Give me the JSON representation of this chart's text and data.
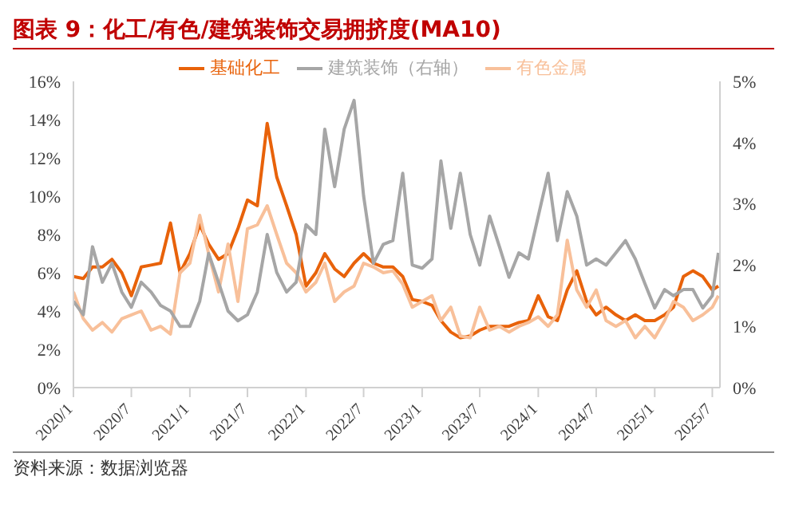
{
  "chart_data": {
    "type": "line",
    "title": "图表 9：化工/有色/建筑装饰交易拥挤度(MA10)",
    "x": [
      "2020-01",
      "2020-02",
      "2020-03",
      "2020-04",
      "2020-05",
      "2020-06",
      "2020-07",
      "2020-08",
      "2020-09",
      "2020-10",
      "2020-11",
      "2020-12",
      "2021-01",
      "2021-02",
      "2021-03",
      "2021-04",
      "2021-05",
      "2021-06",
      "2021-07",
      "2021-08",
      "2021-09",
      "2021-10",
      "2021-11",
      "2021-12",
      "2022-01",
      "2022-02",
      "2022-03",
      "2022-04",
      "2022-05",
      "2022-06",
      "2022-07",
      "2022-08",
      "2022-09",
      "2022-10",
      "2022-11",
      "2022-12",
      "2023-01",
      "2023-02",
      "2023-03",
      "2023-04",
      "2023-05",
      "2023-06",
      "2023-07",
      "2023-08",
      "2023-09",
      "2023-10",
      "2023-11",
      "2023-12",
      "2024-01",
      "2024-02",
      "2024-03",
      "2024-04",
      "2024-05",
      "2024-06",
      "2024-07",
      "2024-08",
      "2024-09",
      "2024-10",
      "2024-11",
      "2024-12",
      "2025-01",
      "2025-02",
      "2025-03",
      "2025-04",
      "2025-05",
      "2025-06",
      "2025-07",
      "2025-07-20"
    ],
    "series": [
      {
        "name": "基础化工",
        "color": "#e8620a",
        "values": [
          5.8,
          5.7,
          6.3,
          6.3,
          6.7,
          6.0,
          4.8,
          6.3,
          6.4,
          6.5,
          8.6,
          6.0,
          7.0,
          8.5,
          7.5,
          6.7,
          7.0,
          8.3,
          9.8,
          9.5,
          13.8,
          11.0,
          9.5,
          8.0,
          5.3,
          6.0,
          7.0,
          6.2,
          5.8,
          6.5,
          7.0,
          6.5,
          6.3,
          6.3,
          5.8,
          4.6,
          4.5,
          4.3,
          3.5,
          2.9,
          2.6,
          2.7,
          3.0,
          3.2,
          3.2,
          3.2,
          3.4,
          3.5,
          4.8,
          3.7,
          3.5,
          5.1,
          6.1,
          4.5,
          3.8,
          4.2,
          3.8,
          3.5,
          3.8,
          3.5,
          3.5,
          3.8,
          4.2,
          5.8,
          6.1,
          5.8,
          5.1,
          5.3
        ]
      },
      {
        "name": "有色金属",
        "color": "#f8c09a",
        "values": [
          5.0,
          3.6,
          3.0,
          3.4,
          2.9,
          3.6,
          3.8,
          4.0,
          3.0,
          3.2,
          2.8,
          6.0,
          6.5,
          9.0,
          7.0,
          5.0,
          7.5,
          4.5,
          8.3,
          8.5,
          9.5,
          8.0,
          6.5,
          6.0,
          5.0,
          5.5,
          6.5,
          4.5,
          5.0,
          5.3,
          6.5,
          6.3,
          6.0,
          6.1,
          5.4,
          4.2,
          4.5,
          4.8,
          3.5,
          4.2,
          2.7,
          2.6,
          4.2,
          3.0,
          3.2,
          2.9,
          3.2,
          3.4,
          3.7,
          3.2,
          3.8,
          7.7,
          5.1,
          4.2,
          5.1,
          3.5,
          3.2,
          3.5,
          2.6,
          3.2,
          2.6,
          3.5,
          4.5,
          4.2,
          3.5,
          3.8,
          4.2,
          4.8
        ]
      },
      {
        "name": "建筑装饰（右轴）",
        "color": "#a6a6a6",
        "axis": "y2",
        "values": [
          1.41,
          1.19,
          2.3,
          1.72,
          2.03,
          1.56,
          1.31,
          1.72,
          1.56,
          1.34,
          1.25,
          1.0,
          1.0,
          1.41,
          2.19,
          1.72,
          1.25,
          1.09,
          1.19,
          1.56,
          2.5,
          1.88,
          1.56,
          1.72,
          2.66,
          2.5,
          4.22,
          3.28,
          4.22,
          4.69,
          3.13,
          2.03,
          2.34,
          2.4,
          3.5,
          2.0,
          1.95,
          2.1,
          3.7,
          2.6,
          3.5,
          2.5,
          2.0,
          2.8,
          2.3,
          1.8,
          2.2,
          2.1,
          2.8,
          3.5,
          2.4,
          3.2,
          2.8,
          2.0,
          2.1,
          2.0,
          2.2,
          2.4,
          2.1,
          1.7,
          1.3,
          1.6,
          1.5,
          1.6,
          1.6,
          1.3,
          1.5,
          2.2
        ]
      }
    ],
    "xlim": [
      "2020-01-01",
      "2025-07-25"
    ],
    "xticks": [
      {
        "value": "2020-01",
        "label": "2020/1"
      },
      {
        "value": "2020-07",
        "label": "2020/7"
      },
      {
        "value": "2021-01",
        "label": "2021/1"
      },
      {
        "value": "2021-07",
        "label": "2021/7"
      },
      {
        "value": "2022-01",
        "label": "2022/1"
      },
      {
        "value": "2022-07",
        "label": "2022/7"
      },
      {
        "value": "2023-01",
        "label": "2023/1"
      },
      {
        "value": "2023-07",
        "label": "2023/7"
      },
      {
        "value": "2024-01",
        "label": "2024/1"
      },
      {
        "value": "2024-07",
        "label": "2024/7"
      },
      {
        "value": "2025-01",
        "label": "2025/1"
      },
      {
        "value": "2025-07",
        "label": "2025/7"
      }
    ],
    "ylim": [
      0,
      16
    ],
    "yticks": [
      {
        "value": 0,
        "label": "0%"
      },
      {
        "value": 2,
        "label": "2%"
      },
      {
        "value": 4,
        "label": "4%"
      },
      {
        "value": 6,
        "label": "6%"
      },
      {
        "value": 8,
        "label": "8%"
      },
      {
        "value": 10,
        "label": "10%"
      },
      {
        "value": 12,
        "label": "12%"
      },
      {
        "value": 14,
        "label": "14%"
      },
      {
        "value": 16,
        "label": "16%"
      }
    ],
    "y2lim": [
      0,
      5
    ],
    "y2ticks": [
      {
        "value": 0,
        "label": "0%"
      },
      {
        "value": 1,
        "label": "1%"
      },
      {
        "value": 2,
        "label": "2%"
      },
      {
        "value": 3,
        "label": "3%"
      },
      {
        "value": 4,
        "label": "4%"
      },
      {
        "value": 5,
        "label": "5%"
      }
    ],
    "legend": "top",
    "grid": false,
    "marker": "none",
    "line_style": "solid",
    "annotations": [
      "资料来源：数据浏览器"
    ]
  }
}
